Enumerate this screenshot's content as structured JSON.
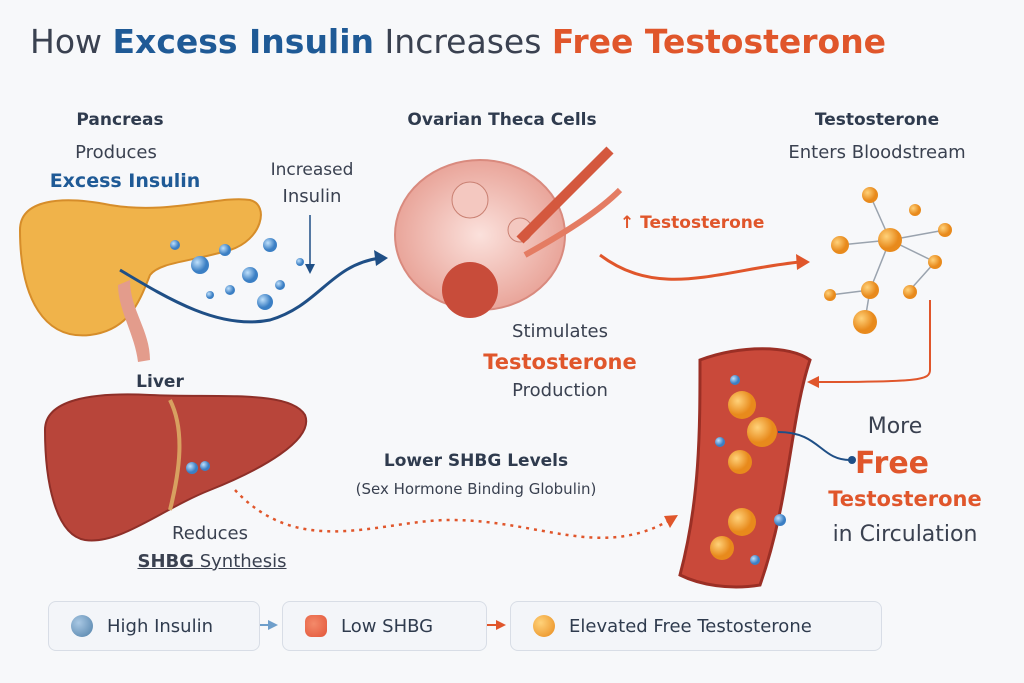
{
  "title": {
    "prefix": "How ",
    "part1": "Excess Insulin",
    "middle": " Increases ",
    "part2": "Free Testosterone"
  },
  "pancreas": {
    "heading": "Pancreas",
    "line1": "Produces",
    "line2": "Excess Insulin"
  },
  "insulin_flow": {
    "line1": "Increased",
    "line2": "Insulin"
  },
  "ovary": {
    "heading": "Ovarian Theca Cells",
    "arrow_label": "↑ Testosterone",
    "line1": "Stimulates",
    "line2": "Testosterone",
    "line3": "Production"
  },
  "testosterone": {
    "heading": "Testosterone",
    "line1": "Enters Bloodstream"
  },
  "liver": {
    "heading": "Liver",
    "line1": "Reduces",
    "line2": "SHBG",
    "line2b": " Synthesis"
  },
  "shbg": {
    "line1": "Lower SHBG Levels",
    "line2": "(Sex Hormone Binding Globulin)"
  },
  "circulation": {
    "line1": "More",
    "line2": "Free",
    "line3": "Testosterone",
    "line4": "in Circulation"
  },
  "legend": [
    {
      "label": "High Insulin",
      "icon": "blue-sphere-icon",
      "color": "#4f7fa8"
    },
    {
      "label": "Low SHBG",
      "icon": "red-shbg-icon",
      "color": "#e2553a"
    },
    {
      "label": "Elevated Free Testosterone",
      "icon": "orange-sphere-icon",
      "color": "#f0a030"
    }
  ],
  "colors": {
    "blue": "#1f5a96",
    "orange": "#e0562b",
    "text": "#2f3b4e"
  }
}
